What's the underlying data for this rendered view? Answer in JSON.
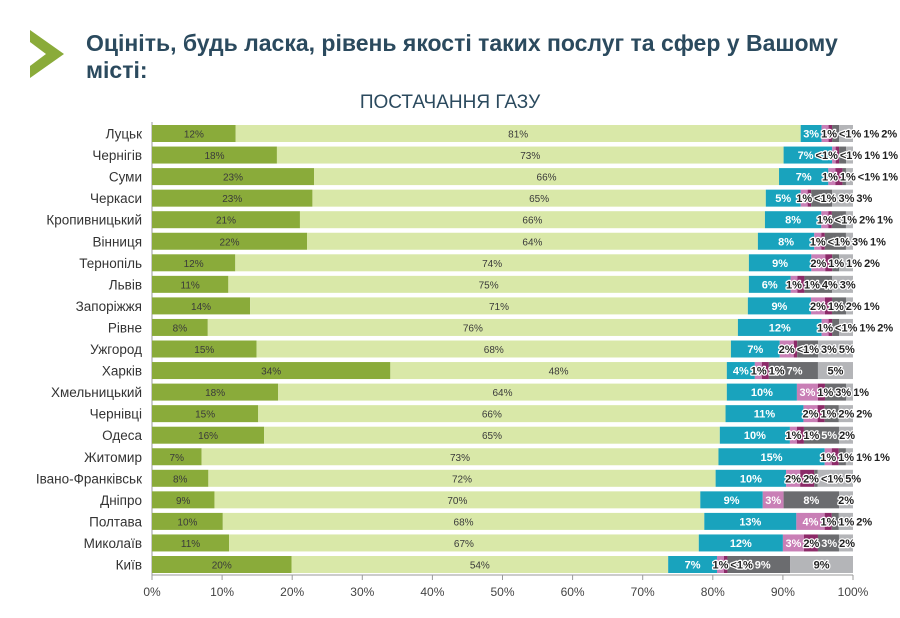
{
  "title": "Оцініть, будь ласка, рівень якості таких послуг та сфер у Вашому місті:",
  "chart_data": {
    "type": "bar",
    "orientation": "horizontal",
    "stacked": true,
    "title": "ПОСТАЧАННЯ ГАЗУ",
    "xlim": [
      0,
      100
    ],
    "x_ticks": [
      "0%",
      "10%",
      "20%",
      "30%",
      "40%",
      "50%",
      "60%",
      "70%",
      "80%",
      "90%",
      "100%"
    ],
    "segment_colors": [
      "#8aab3a",
      "#d9e8a8",
      "#19a3bd",
      "#c97fb6",
      "#8c2a68",
      "#6b6c6f",
      "#b4b5b8"
    ],
    "categories": [
      "Луцьк",
      "Чернігів",
      "Суми",
      "Черкаси",
      "Кропивницький",
      "Вінниця",
      "Тернопіль",
      "Львів",
      "Запоріжжя",
      "Рівне",
      "Ужгород",
      "Харків",
      "Хмельницький",
      "Чернівці",
      "Одеса",
      "Житомир",
      "Івано-Франківськ",
      "Дніпро",
      "Полтава",
      "Миколаїв",
      "Київ"
    ],
    "values": [
      [
        12,
        81,
        3,
        1,
        0.5,
        1,
        2
      ],
      [
        18,
        73,
        7,
        0.5,
        0.5,
        1,
        1
      ],
      [
        23,
        66,
        7,
        1,
        1,
        0.5,
        1
      ],
      [
        23,
        65,
        5,
        1,
        0.5,
        3,
        3
      ],
      [
        21,
        66,
        8,
        1,
        0.5,
        2,
        1
      ],
      [
        22,
        64,
        8,
        1,
        0.5,
        3,
        1
      ],
      [
        12,
        74,
        9,
        2,
        1,
        1,
        2
      ],
      [
        11,
        75,
        6,
        1,
        1,
        4,
        3
      ],
      [
        14,
        71,
        9,
        2,
        1,
        2,
        1
      ],
      [
        8,
        76,
        12,
        1,
        0.5,
        1,
        2
      ],
      [
        15,
        68,
        7,
        2,
        0.5,
        3,
        5
      ],
      [
        34,
        48,
        4,
        1,
        1,
        7,
        5
      ],
      [
        18,
        64,
        10,
        3,
        1,
        3,
        1
      ],
      [
        15,
        66,
        11,
        2,
        1,
        2,
        2
      ],
      [
        16,
        65,
        10,
        1,
        1,
        5,
        2
      ],
      [
        7,
        73,
        15,
        1,
        1,
        1,
        1
      ],
      [
        8,
        72,
        10,
        2,
        2,
        0.5,
        5
      ],
      [
        9,
        70,
        9,
        3,
        0,
        8,
        2
      ],
      [
        10,
        68,
        13,
        4,
        1,
        1,
        2
      ],
      [
        11,
        67,
        12,
        3,
        2,
        3,
        2
      ],
      [
        20,
        54,
        7,
        1,
        0.5,
        9,
        9
      ]
    ],
    "labels": [
      [
        "12%",
        "81%",
        "3%",
        "1%",
        "<1%",
        "1%",
        "2%"
      ],
      [
        "18%",
        "73%",
        "7%",
        "<1%",
        "<1%",
        "1%",
        "1%"
      ],
      [
        "23%",
        "66%",
        "7%",
        "1%",
        "1%",
        "<1%",
        "1%"
      ],
      [
        "23%",
        "65%",
        "5%",
        "1%",
        "<1%",
        "3%",
        "3%"
      ],
      [
        "21%",
        "66%",
        "8%",
        "1%",
        "<1%",
        "2%",
        "1%"
      ],
      [
        "22%",
        "64%",
        "8%",
        "1%",
        "<1%",
        "3%",
        "1%"
      ],
      [
        "12%",
        "74%",
        "9%",
        "2%",
        "1%",
        "1%",
        "2%"
      ],
      [
        "11%",
        "75%",
        "6%",
        "1%",
        "1%",
        "4%",
        "3%"
      ],
      [
        "14%",
        "71%",
        "9%",
        "2%",
        "1%",
        "2%",
        "1%"
      ],
      [
        "8%",
        "76%",
        "12%",
        "1%",
        "<1%",
        "1%",
        "2%"
      ],
      [
        "15%",
        "68%",
        "7%",
        "2%",
        "<1%",
        "3%",
        "5%"
      ],
      [
        "34%",
        "48%",
        "4%",
        "1%",
        "1%",
        "7%",
        "5%"
      ],
      [
        "18%",
        "64%",
        "10%",
        "3%",
        "1%",
        "3%",
        "1%"
      ],
      [
        "15%",
        "66%",
        "11%",
        "2%",
        "1%",
        "2%",
        "2%"
      ],
      [
        "16%",
        "65%",
        "10%",
        "1%",
        "1%",
        "5%",
        "2%"
      ],
      [
        "7%",
        "73%",
        "15%",
        "1%",
        "1%",
        "1%",
        "1%"
      ],
      [
        "8%",
        "72%",
        "10%",
        "2%",
        "2%",
        "<1%",
        "5%"
      ],
      [
        "9%",
        "70%",
        "9%",
        "3%",
        "",
        "8%",
        "2%"
      ],
      [
        "10%",
        "68%",
        "13%",
        "4%",
        "1%",
        "1%",
        "2%"
      ],
      [
        "11%",
        "67%",
        "12%",
        "3%",
        "2%",
        "3%",
        "2%"
      ],
      [
        "20%",
        "54%",
        "7%",
        "1%",
        "<1%",
        "9%",
        "9%"
      ]
    ]
  }
}
